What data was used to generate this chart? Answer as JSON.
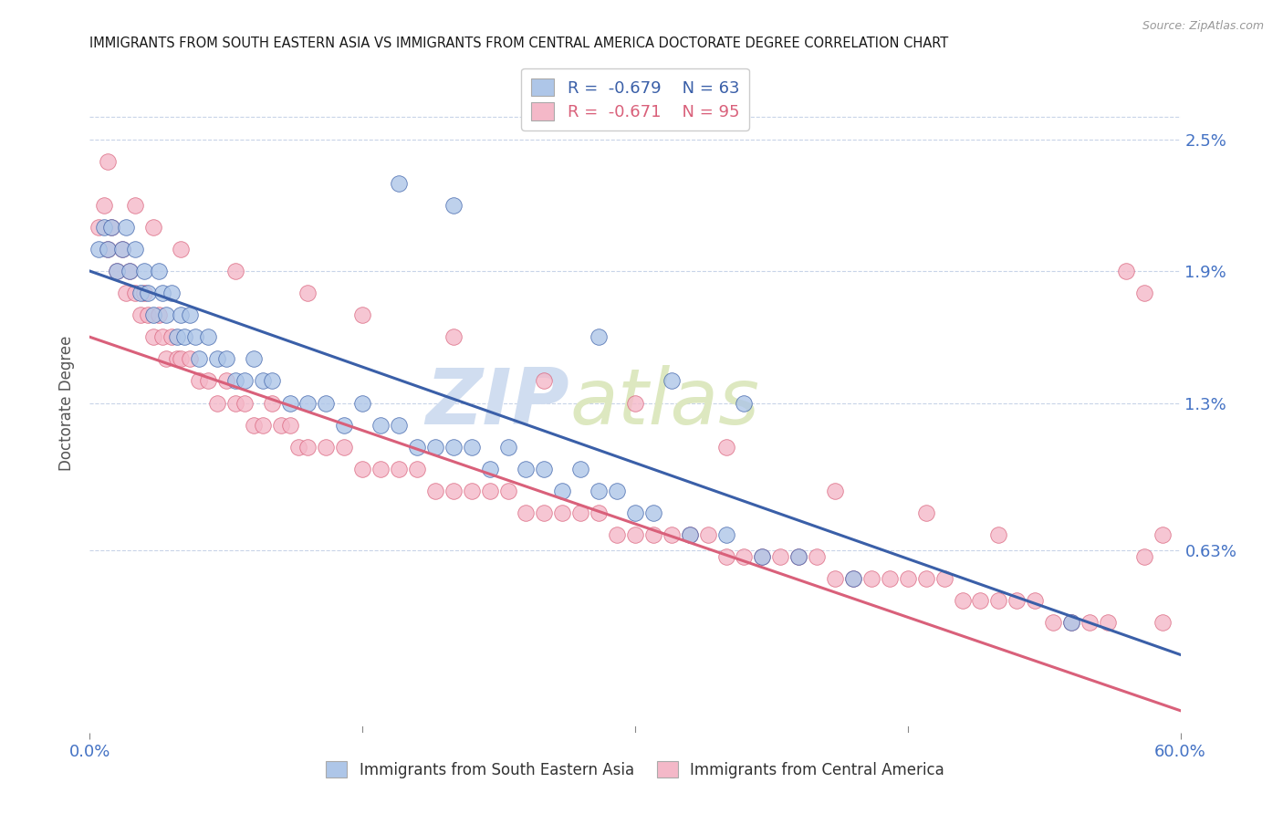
{
  "title": "IMMIGRANTS FROM SOUTH EASTERN ASIA VS IMMIGRANTS FROM CENTRAL AMERICA DOCTORATE DEGREE CORRELATION CHART",
  "source": "Source: ZipAtlas.com",
  "ylabel": "Doctorate Degree",
  "yticks": [
    0.0063,
    0.013,
    0.019,
    0.025
  ],
  "ytick_labels": [
    "0.63%",
    "1.3%",
    "1.9%",
    "2.5%"
  ],
  "xlim": [
    0.0,
    0.6
  ],
  "ylim": [
    -0.002,
    0.028
  ],
  "blue_color": "#aec6e8",
  "pink_color": "#f4b8c8",
  "blue_line_color": "#3a5fa8",
  "pink_line_color": "#d9607a",
  "watermark_zip": "ZIP",
  "watermark_atlas": "atlas",
  "title_color": "#1a1a1a",
  "axis_color": "#4472c4",
  "grid_color": "#c8d4e8",
  "blue_line_x0": 0.0,
  "blue_line_y0": 0.019,
  "blue_line_x1": 0.55,
  "blue_line_y1": 0.003,
  "pink_line_x0": 0.0,
  "pink_line_y0": 0.016,
  "pink_line_x1": 0.6,
  "pink_line_y1": -0.001,
  "blue_scatter_x": [
    0.005,
    0.008,
    0.01,
    0.012,
    0.015,
    0.018,
    0.02,
    0.022,
    0.025,
    0.028,
    0.03,
    0.032,
    0.035,
    0.038,
    0.04,
    0.042,
    0.045,
    0.048,
    0.05,
    0.052,
    0.055,
    0.058,
    0.06,
    0.065,
    0.07,
    0.075,
    0.08,
    0.085,
    0.09,
    0.095,
    0.1,
    0.11,
    0.12,
    0.13,
    0.14,
    0.15,
    0.16,
    0.17,
    0.18,
    0.19,
    0.2,
    0.21,
    0.22,
    0.23,
    0.24,
    0.25,
    0.26,
    0.27,
    0.28,
    0.29,
    0.3,
    0.31,
    0.33,
    0.35,
    0.37,
    0.39,
    0.42,
    0.17,
    0.2,
    0.28,
    0.32,
    0.36,
    0.54
  ],
  "blue_scatter_y": [
    0.02,
    0.021,
    0.02,
    0.021,
    0.019,
    0.02,
    0.021,
    0.019,
    0.02,
    0.018,
    0.019,
    0.018,
    0.017,
    0.019,
    0.018,
    0.017,
    0.018,
    0.016,
    0.017,
    0.016,
    0.017,
    0.016,
    0.015,
    0.016,
    0.015,
    0.015,
    0.014,
    0.014,
    0.015,
    0.014,
    0.014,
    0.013,
    0.013,
    0.013,
    0.012,
    0.013,
    0.012,
    0.012,
    0.011,
    0.011,
    0.011,
    0.011,
    0.01,
    0.011,
    0.01,
    0.01,
    0.009,
    0.01,
    0.009,
    0.009,
    0.008,
    0.008,
    0.007,
    0.007,
    0.006,
    0.006,
    0.005,
    0.023,
    0.022,
    0.016,
    0.014,
    0.013,
    0.003
  ],
  "pink_scatter_x": [
    0.005,
    0.008,
    0.01,
    0.012,
    0.015,
    0.018,
    0.02,
    0.022,
    0.025,
    0.028,
    0.03,
    0.032,
    0.035,
    0.038,
    0.04,
    0.042,
    0.045,
    0.048,
    0.05,
    0.055,
    0.06,
    0.065,
    0.07,
    0.075,
    0.08,
    0.085,
    0.09,
    0.095,
    0.1,
    0.105,
    0.11,
    0.115,
    0.12,
    0.13,
    0.14,
    0.15,
    0.16,
    0.17,
    0.18,
    0.19,
    0.2,
    0.21,
    0.22,
    0.23,
    0.24,
    0.25,
    0.26,
    0.27,
    0.28,
    0.29,
    0.3,
    0.31,
    0.32,
    0.33,
    0.34,
    0.35,
    0.36,
    0.37,
    0.38,
    0.39,
    0.4,
    0.41,
    0.42,
    0.43,
    0.44,
    0.45,
    0.46,
    0.47,
    0.48,
    0.49,
    0.5,
    0.51,
    0.52,
    0.53,
    0.54,
    0.55,
    0.56,
    0.01,
    0.025,
    0.035,
    0.05,
    0.08,
    0.12,
    0.15,
    0.2,
    0.25,
    0.3,
    0.35,
    0.41,
    0.46,
    0.5,
    0.57,
    0.58,
    0.59,
    0.58,
    0.59
  ],
  "pink_scatter_y": [
    0.021,
    0.022,
    0.02,
    0.021,
    0.019,
    0.02,
    0.018,
    0.019,
    0.018,
    0.017,
    0.018,
    0.017,
    0.016,
    0.017,
    0.016,
    0.015,
    0.016,
    0.015,
    0.015,
    0.015,
    0.014,
    0.014,
    0.013,
    0.014,
    0.013,
    0.013,
    0.012,
    0.012,
    0.013,
    0.012,
    0.012,
    0.011,
    0.011,
    0.011,
    0.011,
    0.01,
    0.01,
    0.01,
    0.01,
    0.009,
    0.009,
    0.009,
    0.009,
    0.009,
    0.008,
    0.008,
    0.008,
    0.008,
    0.008,
    0.007,
    0.007,
    0.007,
    0.007,
    0.007,
    0.007,
    0.006,
    0.006,
    0.006,
    0.006,
    0.006,
    0.006,
    0.005,
    0.005,
    0.005,
    0.005,
    0.005,
    0.005,
    0.005,
    0.004,
    0.004,
    0.004,
    0.004,
    0.004,
    0.003,
    0.003,
    0.003,
    0.003,
    0.024,
    0.022,
    0.021,
    0.02,
    0.019,
    0.018,
    0.017,
    0.016,
    0.014,
    0.013,
    0.011,
    0.009,
    0.008,
    0.007,
    0.019,
    0.018,
    0.007,
    0.006,
    0.003
  ]
}
